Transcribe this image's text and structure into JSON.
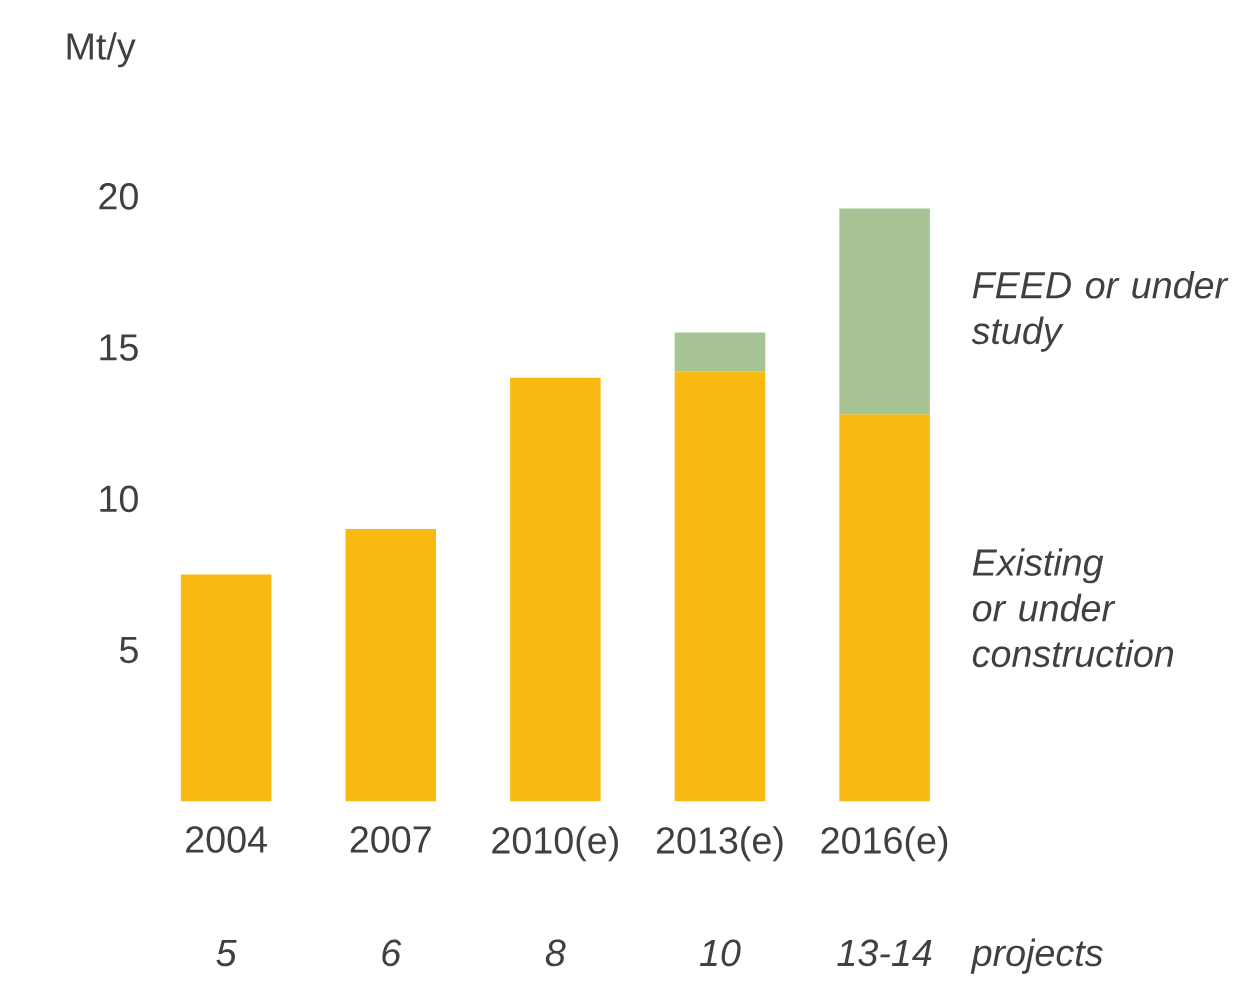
{
  "chart_data": {
    "type": "bar",
    "stacked": true,
    "ylabel": "Mt/y",
    "categories": [
      "2004",
      "2007",
      "2010(e)",
      "2013(e)",
      "2016(e)"
    ],
    "series": [
      {
        "name": "Existing or under construction",
        "color": "#f9b911",
        "values": [
          7.5,
          9,
          14,
          14.2,
          12.8
        ]
      },
      {
        "name": "FEED or under study",
        "color": "#a7c394",
        "values": [
          null,
          null,
          null,
          1.3,
          6.8
        ]
      }
    ],
    "ylim": [
      0,
      20
    ],
    "yticks": [
      5,
      10,
      15,
      20
    ],
    "legend": false,
    "annotations": [
      "5",
      "6",
      "8",
      "10",
      "13-14",
      "projects"
    ]
  }
}
